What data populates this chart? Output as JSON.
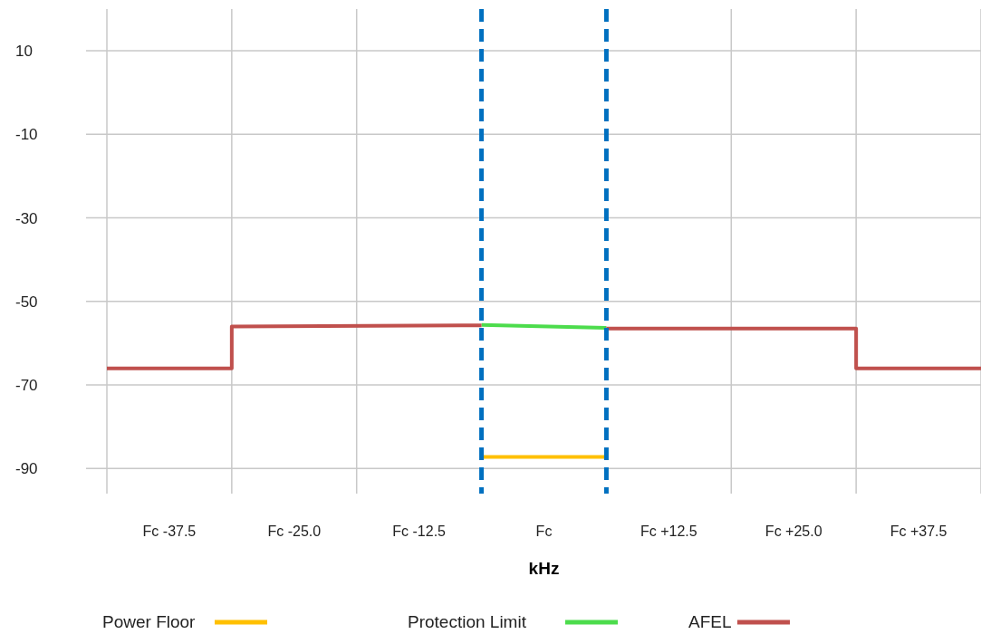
{
  "chart_data": {
    "type": "line",
    "xlabel": "kHz",
    "xlim": [
      -43.75,
      43.75
    ],
    "xticks": [
      {
        "value": -43.75,
        "label": null
      },
      {
        "value": -37.5,
        "label": "Fc -37.5"
      },
      {
        "value": -31.25,
        "label": null
      },
      {
        "value": -25,
        "label": "Fc -25.0"
      },
      {
        "value": -18.75,
        "label": null
      },
      {
        "value": -12.5,
        "label": "Fc -12.5"
      },
      {
        "value": 0,
        "label": "Fc"
      },
      {
        "value": 12.5,
        "label": "Fc +12.5"
      },
      {
        "value": 18.75,
        "label": null
      },
      {
        "value": 25,
        "label": "Fc +25.0"
      },
      {
        "value": 31.25,
        "label": null
      },
      {
        "value": 37.5,
        "label": "Fc +37.5"
      },
      {
        "value": 43.75,
        "label": null
      }
    ],
    "ylim": [
      -96,
      20
    ],
    "yticks": [
      10,
      -10,
      -30,
      -50,
      -70,
      -90
    ],
    "grid": true,
    "legend": "bottom",
    "line_style": "solid",
    "series": [
      {
        "name": "Power Floor",
        "color": "#ffc000",
        "x": [
          -6.25,
          6.25
        ],
        "values": [
          -87.2,
          -87.2
        ]
      },
      {
        "name": "Protection Limit",
        "color": "#4cdc4c",
        "x": [
          -6.25,
          6.25
        ],
        "values": [
          -55.6,
          -56.3
        ]
      },
      {
        "name": "AFEL",
        "color": "#c0504d",
        "x": [
          -43.75,
          -31.25,
          -31.25,
          -6.25,
          0,
          6.25,
          31.25,
          31.25,
          43.75
        ],
        "values": [
          -66,
          -66,
          -56,
          -55.7,
          null,
          -56.5,
          -56.5,
          -66,
          -66
        ]
      }
    ],
    "ref_lines": [
      {
        "axis": "x",
        "value": -6.25,
        "color": "#0070c0",
        "line_style": "dashed"
      },
      {
        "axis": "x",
        "value": 6.25,
        "color": "#0070c0",
        "line_style": "dashed"
      }
    ]
  }
}
